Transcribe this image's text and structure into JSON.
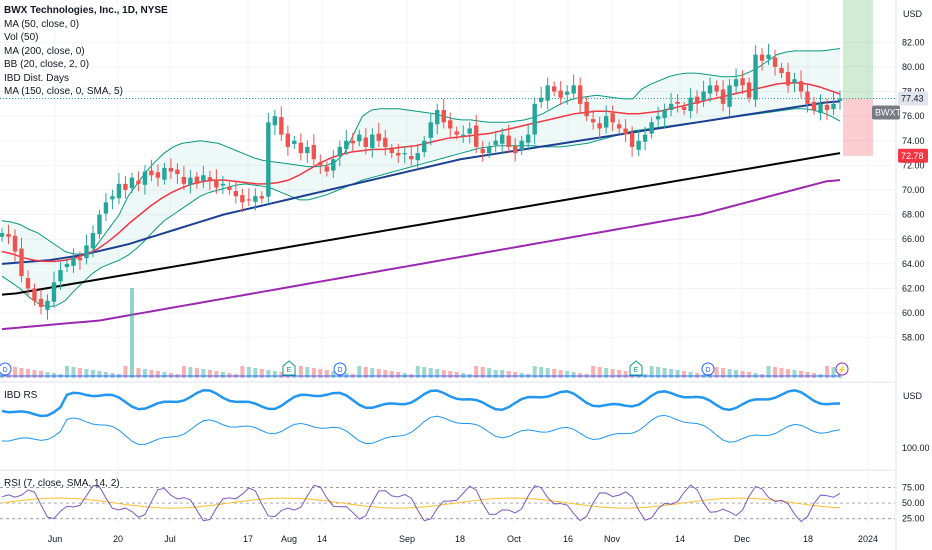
{
  "legend": {
    "title": "BWX Technologies, Inc., 1D, NYSE",
    "lines": [
      "MA (50, close, 0)",
      "Vol (50)",
      "MA (200, close, 0)",
      "BB (20, close, 2, 0)",
      "IBD Dist. Days",
      "MA (150, close, 0, SMA, 5)"
    ]
  },
  "currency": "USD",
  "panes": {
    "rs_label": "IBD RS",
    "rsi_label": "RSI (7, close, SMA, 14, 2)"
  },
  "price_axis_ticks": [
    "82.00",
    "80.00",
    "78.00",
    "76.00",
    "74.00",
    "72.00",
    "70.00",
    "68.00",
    "66.00",
    "64.00",
    "62.00",
    "60.00",
    "58.00"
  ],
  "rs_axis_ticks": [
    "100.00"
  ],
  "rsi_axis_ticks": [
    "75.00",
    "50.00",
    "25.00"
  ],
  "badges": {
    "last_price": "77.43",
    "ticker": "BWXT",
    "stop": "72.78"
  },
  "x_axis_labels": [
    "Jun",
    "20",
    "Jul",
    "17",
    "Aug",
    "14",
    "Sep",
    "18",
    "Oct",
    "16",
    "Nov",
    "14",
    "Dec",
    "18",
    "2024"
  ],
  "event_markers": [
    {
      "type": "D",
      "x_label": "Jun"
    },
    {
      "type": "E",
      "x_label": "Aug"
    },
    {
      "type": "D",
      "x_label": "Sep"
    },
    {
      "type": "E",
      "x_label": "Nov"
    },
    {
      "type": "D",
      "x_label": "Dec"
    },
    {
      "type": "flash",
      "x_label": "2024"
    }
  ],
  "colors": {
    "up": "#26a69a",
    "down": "#ef5350",
    "ma50": "#f23645",
    "ma150": "#1c3f94",
    "ma200": "#000000",
    "ma_purple": "#9c27b0",
    "bb": "#089981",
    "rs": "#2196f3",
    "rsi": "#7e57c2",
    "rsi_ma": "#fbc02d"
  },
  "chart_data": {
    "type": "candlestick",
    "y_range": [
      57,
      83
    ],
    "closes": [
      66.5,
      66.2,
      65.0,
      63.0,
      62.0,
      61.0,
      60.5,
      61.0,
      62.5,
      63.5,
      64.0,
      64.5,
      64.3,
      65.5,
      66.5,
      68.0,
      69.0,
      69.5,
      70.5,
      70.0,
      71.0,
      70.5,
      71.5,
      71.2,
      71.0,
      71.8,
      71.5,
      71.3,
      70.5,
      71.0,
      70.5,
      71.2,
      70.8,
      70.2,
      70.5,
      70.0,
      69.5,
      69.0,
      69.2,
      69.5,
      69.3,
      75.5,
      76.0,
      74.5,
      73.5,
      74.0,
      73.0,
      73.5,
      72.5,
      72.0,
      71.5,
      72.5,
      73.5,
      74.0,
      73.8,
      74.5,
      73.5,
      74.5,
      74.0,
      73.5,
      73.0,
      72.8,
      73.0,
      72.5,
      73.0,
      74.0,
      75.5,
      76.5,
      75.5,
      75.0,
      74.5,
      74.5,
      75.0,
      73.5,
      73.0,
      73.5,
      74.0,
      74.5,
      73.5,
      73.0,
      74.0,
      74.5,
      77.0,
      77.5,
      78.5,
      78.0,
      77.5,
      78.0,
      78.5,
      77.0,
      76.0,
      75.5,
      75.0,
      76.0,
      75.5,
      75.0,
      74.5,
      73.5,
      74.0,
      74.5,
      75.5,
      76.0,
      76.5,
      77.0,
      77.0,
      76.5,
      77.5,
      77.0,
      78.0,
      78.5,
      78.0,
      77.0,
      78.5,
      79.0,
      78.5,
      77.5,
      81.0,
      80.5,
      81.0,
      80.0,
      79.5,
      78.5,
      79.0,
      78.0,
      77.0,
      76.5,
      77.0,
      76.5,
      77.0,
      77.43
    ],
    "bb_upper": [
      67.5,
      67.4,
      67.2,
      66.8,
      66.5,
      66.0,
      65.5,
      65.0,
      64.8,
      64.8,
      65.0,
      66.0,
      67.0,
      68.0,
      69.5,
      70.5,
      71.5,
      72.3,
      73.0,
      73.5,
      73.8,
      73.9,
      74.0,
      73.9,
      73.8,
      73.5,
      73.2,
      72.9,
      72.6,
      72.4,
      72.3,
      72.2,
      72.1,
      72.0,
      71.9,
      71.9,
      72.0,
      72.3,
      73.0,
      74.5,
      76.0,
      76.5,
      76.6,
      76.6,
      76.6,
      76.5,
      76.4,
      76.3,
      76.2,
      76.0,
      75.8,
      75.7,
      75.7,
      75.6,
      75.5,
      75.5,
      75.5,
      75.6,
      75.7,
      75.9,
      76.2,
      76.6,
      77.0,
      77.3,
      77.5,
      77.6,
      77.7,
      77.6,
      77.5,
      77.4,
      77.4,
      78.2,
      78.6,
      78.9,
      79.2,
      79.4,
      79.5,
      79.5,
      79.4,
      79.3,
      79.2,
      79.2,
      79.3,
      79.6,
      80.0,
      80.5,
      81.0,
      81.2,
      81.3,
      81.3,
      81.3,
      81.3,
      81.4,
      81.5
    ],
    "bb_lower": [
      63.0,
      62.5,
      62.0,
      61.3,
      60.8,
      60.5,
      60.6,
      61.0,
      61.8,
      62.5,
      63.2,
      63.7,
      64.0,
      64.3,
      64.7,
      65.3,
      66.0,
      66.8,
      67.5,
      68.0,
      68.5,
      69.0,
      69.5,
      69.8,
      70.0,
      70.2,
      70.4,
      70.5,
      70.4,
      70.3,
      70.1,
      69.8,
      69.5,
      69.2,
      69.2,
      69.4,
      69.6,
      69.9,
      70.2,
      70.5,
      70.8,
      71.0,
      71.2,
      71.4,
      71.6,
      71.8,
      72.0,
      72.2,
      72.4,
      72.6,
      72.8,
      73.0,
      73.2,
      73.4,
      73.5,
      73.6,
      73.6,
      73.6,
      73.6,
      73.6,
      73.5,
      73.5,
      73.5,
      73.6,
      73.7,
      73.8,
      74.0,
      74.2,
      74.4,
      74.6,
      74.8,
      74.9,
      75.0,
      75.1,
      75.2,
      75.3,
      75.4,
      75.5,
      75.6,
      75.7,
      75.8,
      75.9,
      76.0,
      76.1,
      76.2,
      76.3,
      76.4,
      76.5,
      76.6,
      76.6,
      76.5,
      76.3,
      76.0,
      75.6
    ],
    "ma50": [
      65.0,
      64.8,
      64.5,
      64.3,
      64.2,
      64.2,
      64.3,
      64.5,
      64.8,
      65.2,
      65.8,
      66.5,
      67.3,
      68.0,
      68.7,
      69.3,
      69.8,
      70.2,
      70.5,
      70.7,
      70.8,
      70.8,
      70.7,
      70.6,
      70.5,
      70.5,
      70.6,
      70.8,
      71.2,
      71.7,
      72.2,
      72.6,
      72.9,
      73.1,
      73.2,
      73.3,
      73.3,
      73.4,
      73.5,
      73.6,
      73.8,
      74.0,
      74.2,
      74.3,
      74.4,
      74.5,
      74.6,
      74.8,
      75.0,
      75.2,
      75.4,
      75.6,
      75.8,
      76.0,
      76.2,
      76.3,
      76.4,
      76.4,
      76.3,
      76.2,
      76.2,
      76.3,
      76.4,
      76.6,
      76.8,
      77.0,
      77.2,
      77.4,
      77.6,
      77.8,
      78.0,
      78.2,
      78.4,
      78.6,
      78.7,
      78.7,
      78.6,
      78.4,
      78.1,
      77.8
    ],
    "ma150": [
      64.0,
      64.1,
      64.2,
      64.3,
      64.5,
      64.7,
      65.0,
      65.3,
      65.6,
      66.0,
      66.4,
      66.8,
      67.2,
      67.6,
      68.0,
      68.3,
      68.6,
      68.9,
      69.2,
      69.5,
      69.8,
      70.1,
      70.4,
      70.7,
      71.0,
      71.3,
      71.6,
      71.9,
      72.2,
      72.5,
      72.7,
      72.9,
      73.1,
      73.3,
      73.5,
      73.7,
      73.9,
      74.1,
      74.3,
      74.5,
      74.7,
      74.9,
      75.1,
      75.3,
      75.5,
      75.7,
      75.9,
      76.1,
      76.3,
      76.5,
      76.7,
      76.9,
      77.1,
      77.2
    ],
    "ma200": [
      61.5,
      61.6,
      61.8,
      62.0,
      62.2,
      62.4,
      62.6,
      62.8,
      63.0,
      63.2,
      63.4,
      63.6,
      63.8,
      64.0,
      64.2,
      64.4,
      64.6,
      64.8,
      65.0,
      65.2,
      65.4,
      65.6,
      65.8,
      66.0,
      66.2,
      66.4,
      66.6,
      66.8,
      67.0,
      67.2,
      67.4,
      67.6,
      67.8,
      68.0,
      68.2,
      68.4,
      68.6,
      68.8,
      69.0,
      69.2,
      69.4,
      69.6,
      69.8,
      70.0,
      70.2,
      70.4,
      70.6,
      70.8,
      71.0,
      71.2,
      71.4,
      71.6,
      71.8,
      72.0,
      72.2,
      72.4,
      72.6,
      72.8,
      73.0
    ],
    "ma_purple": [
      58.7,
      58.8,
      58.9,
      59.0,
      59.1,
      59.2,
      59.3,
      59.4,
      59.6,
      59.8,
      60.0,
      60.2,
      60.4,
      60.6,
      60.8,
      61.0,
      61.2,
      61.4,
      61.6,
      61.8,
      62.0,
      62.2,
      62.4,
      62.6,
      62.8,
      63.0,
      63.2,
      63.4,
      63.6,
      63.8,
      64.0,
      64.2,
      64.4,
      64.6,
      64.8,
      65.0,
      65.2,
      65.4,
      65.6,
      65.8,
      66.0,
      66.2,
      66.4,
      66.6,
      66.8,
      67.0,
      67.2,
      67.4,
      67.6,
      67.8,
      68.0,
      68.3,
      68.6,
      68.9,
      69.2,
      69.5,
      69.8,
      70.1,
      70.4,
      70.7,
      70.8
    ]
  }
}
